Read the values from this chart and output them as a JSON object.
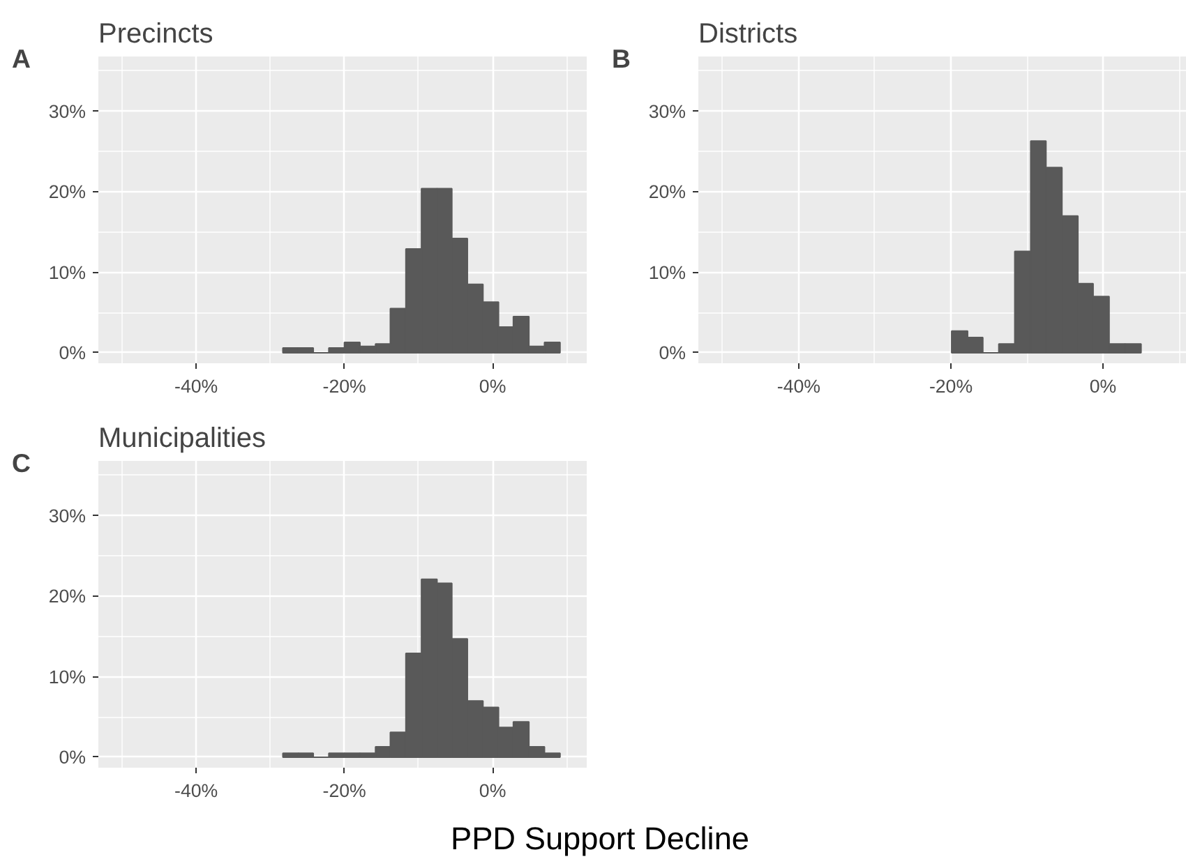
{
  "chart_data": [
    {
      "type": "histogram",
      "title": "Precincts",
      "annotations": [
        "A"
      ],
      "color": "#595959",
      "grid": true,
      "bins": [
        -28.3,
        -26.2,
        -24.2,
        -22.1,
        -20.0,
        -17.9,
        -15.8,
        -13.8,
        -11.7,
        -9.6,
        -7.5,
        -5.5,
        -3.4,
        -1.3,
        0.8,
        2.8,
        4.9,
        7.0,
        9.1
      ],
      "values": [
        0.6,
        0.6,
        0,
        0.6,
        1.3,
        0.8,
        1.1,
        5.5,
        12.9,
        20.4,
        20.4,
        14.2,
        8.5,
        6.3,
        3.2,
        4.5,
        0.8,
        1.3
      ],
      "xlim": [
        -53.2,
        12.7
      ],
      "ylim": [
        -1.3,
        36.8
      ],
      "xticks": [
        {
          "value": -40,
          "label": "-40%"
        },
        {
          "value": -20,
          "label": "-20%"
        },
        {
          "value": 0,
          "label": "0%"
        }
      ],
      "yticks": [
        {
          "value": 0,
          "label": "0%"
        },
        {
          "value": 10,
          "label": "10%"
        },
        {
          "value": 20,
          "label": "20%"
        },
        {
          "value": 30,
          "label": "30%"
        }
      ]
    },
    {
      "type": "histogram",
      "title": "Districts",
      "annotations": [
        "B"
      ],
      "color": "#595959",
      "grid": true,
      "bins": [
        -19.9,
        -17.8,
        -15.8,
        -13.7,
        -11.6,
        -9.5,
        -7.5,
        -5.4,
        -3.3,
        -1.3,
        0.8,
        2.9,
        5.0
      ],
      "values": [
        2.7,
        1.9,
        0,
        1.1,
        12.6,
        26.3,
        23.0,
        17.0,
        8.6,
        7.0,
        1.1,
        1.1
      ],
      "xlim": [
        -53.2,
        11.0
      ],
      "ylim": [
        -1.3,
        36.8
      ],
      "xticks": [
        {
          "value": -40,
          "label": "-40%"
        },
        {
          "value": -20,
          "label": "-20%"
        },
        {
          "value": 0,
          "label": "0%"
        }
      ],
      "yticks": [
        {
          "value": 0,
          "label": "0%"
        },
        {
          "value": 10,
          "label": "10%"
        },
        {
          "value": 20,
          "label": "20%"
        },
        {
          "value": 30,
          "label": "30%"
        }
      ]
    },
    {
      "type": "histogram",
      "title": "Municipalities",
      "annotations": [
        "C"
      ],
      "xlabel": "PPD Support Decline",
      "color": "#595959",
      "grid": true,
      "bins": [
        -28.3,
        -26.2,
        -24.2,
        -22.1,
        -20.0,
        -17.9,
        -15.8,
        -13.8,
        -11.7,
        -9.6,
        -7.5,
        -5.5,
        -3.4,
        -1.3,
        0.8,
        2.8,
        4.9,
        7.0,
        9.1
      ],
      "values": [
        0.5,
        0.5,
        0,
        0.5,
        0.5,
        0.5,
        1.3,
        3.1,
        12.9,
        22.1,
        21.6,
        14.7,
        7.0,
        6.2,
        3.7,
        4.4,
        1.3,
        0.5
      ],
      "xlim": [
        -53.2,
        12.7
      ],
      "ylim": [
        -1.3,
        36.8
      ],
      "xticks": [
        {
          "value": -40,
          "label": "-40%"
        },
        {
          "value": -20,
          "label": "-20%"
        },
        {
          "value": 0,
          "label": "0%"
        }
      ],
      "yticks": [
        {
          "value": 0,
          "label": "0%"
        },
        {
          "value": 10,
          "label": "10%"
        },
        {
          "value": 20,
          "label": "20%"
        },
        {
          "value": 30,
          "label": "30%"
        }
      ]
    }
  ]
}
